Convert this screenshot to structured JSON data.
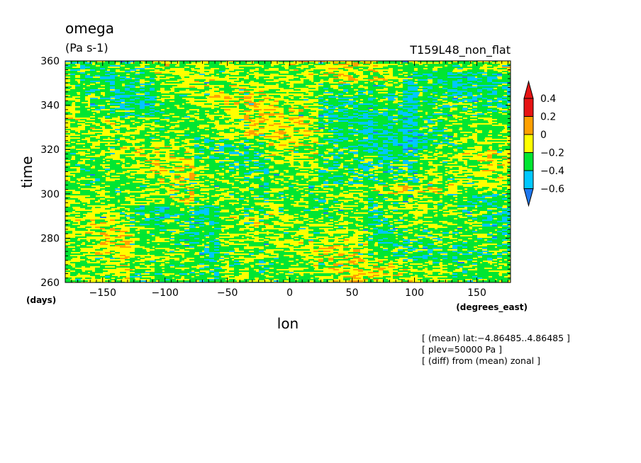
{
  "chart_data": {
    "type": "heatmap",
    "title": "omega",
    "units": "(Pa s-1)",
    "run_label": "T159L48_non_flat",
    "xlabel": "lon",
    "xunit": "(degrees_east)",
    "ylabel": "time",
    "yunit": "(days)",
    "xlim": [
      -180,
      177
    ],
    "ylim": [
      260,
      360
    ],
    "x_ticks": [
      -150,
      -100,
      -50,
      0,
      50,
      100,
      150
    ],
    "x_tick_labels": [
      "−150",
      "−100",
      "−50",
      "0",
      "50",
      "100",
      "150"
    ],
    "y_ticks": [
      260,
      280,
      300,
      320,
      340,
      360
    ],
    "y_tick_labels": [
      "260",
      "280",
      "300",
      "320",
      "340",
      "360"
    ],
    "colorbar": {
      "levels": [
        -0.6,
        -0.4,
        -0.2,
        0,
        0.2,
        0.4
      ],
      "level_labels": [
        "−0.6",
        "−0.4",
        "−0.2",
        "0",
        "0.2",
        "0.4"
      ],
      "colors": [
        "#1e78f0",
        "#00c8ff",
        "#00e632",
        "#ffff00",
        "#ffa000",
        "#e61414"
      ]
    },
    "field_description_bands": [
      {
        "lon_range": [
          -180,
          -110
        ],
        "time_range": [
          335,
          360
        ],
        "dominant": "negative"
      },
      {
        "lon_range": [
          -130,
          -60
        ],
        "time_range": [
          260,
          295
        ],
        "dominant": "negative"
      },
      {
        "lon_range": [
          -80,
          -20
        ],
        "time_range": [
          290,
          325
        ],
        "dominant": "negative"
      },
      {
        "lon_range": [
          20,
          100
        ],
        "time_range": [
          305,
          350
        ],
        "dominant": "negative"
      },
      {
        "lon_range": [
          60,
          177
        ],
        "time_range": [
          270,
          300
        ],
        "dominant": "negative"
      },
      {
        "lon_range": [
          90,
          177
        ],
        "time_range": [
          320,
          355
        ],
        "dominant": "negative"
      }
    ],
    "annotations": [
      "[ (mean) lat:−4.86485..4.86485 ]",
      "[ plev=50000 Pa ]",
      "[ (diff) from (mean) zonal ]"
    ]
  }
}
